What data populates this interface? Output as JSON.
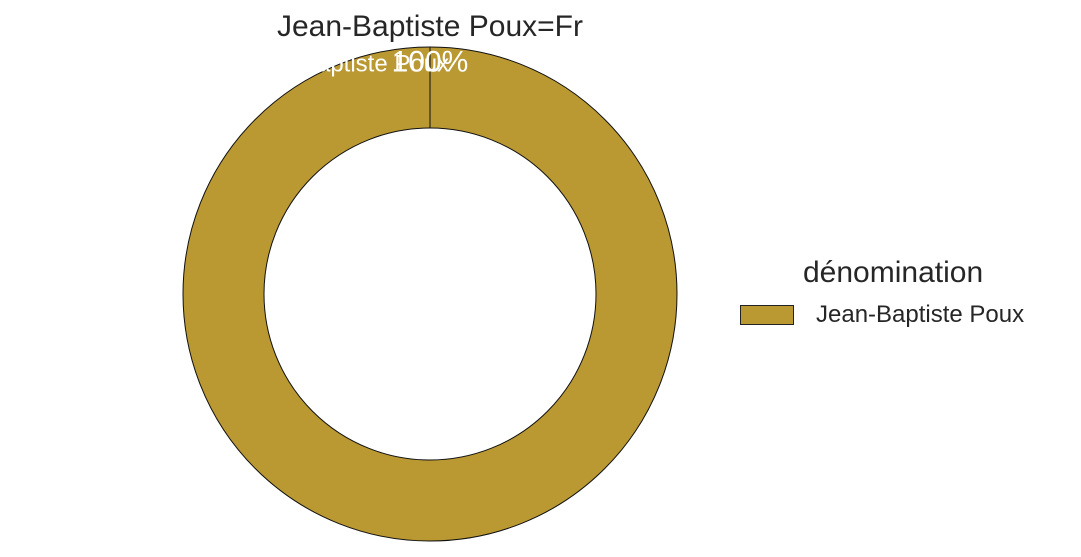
{
  "chart_data": {
    "type": "pie",
    "title": "Jean-Baptiste Poux=Fr",
    "donut": true,
    "slices": [
      {
        "label": "Jean-Baptiste Poux",
        "value": 100,
        "percent_label": "100%",
        "color": "#BA9832"
      }
    ],
    "legend": {
      "title": "dénomination",
      "placement": "right",
      "entries": [
        "Jean-Baptiste Poux"
      ]
    }
  }
}
